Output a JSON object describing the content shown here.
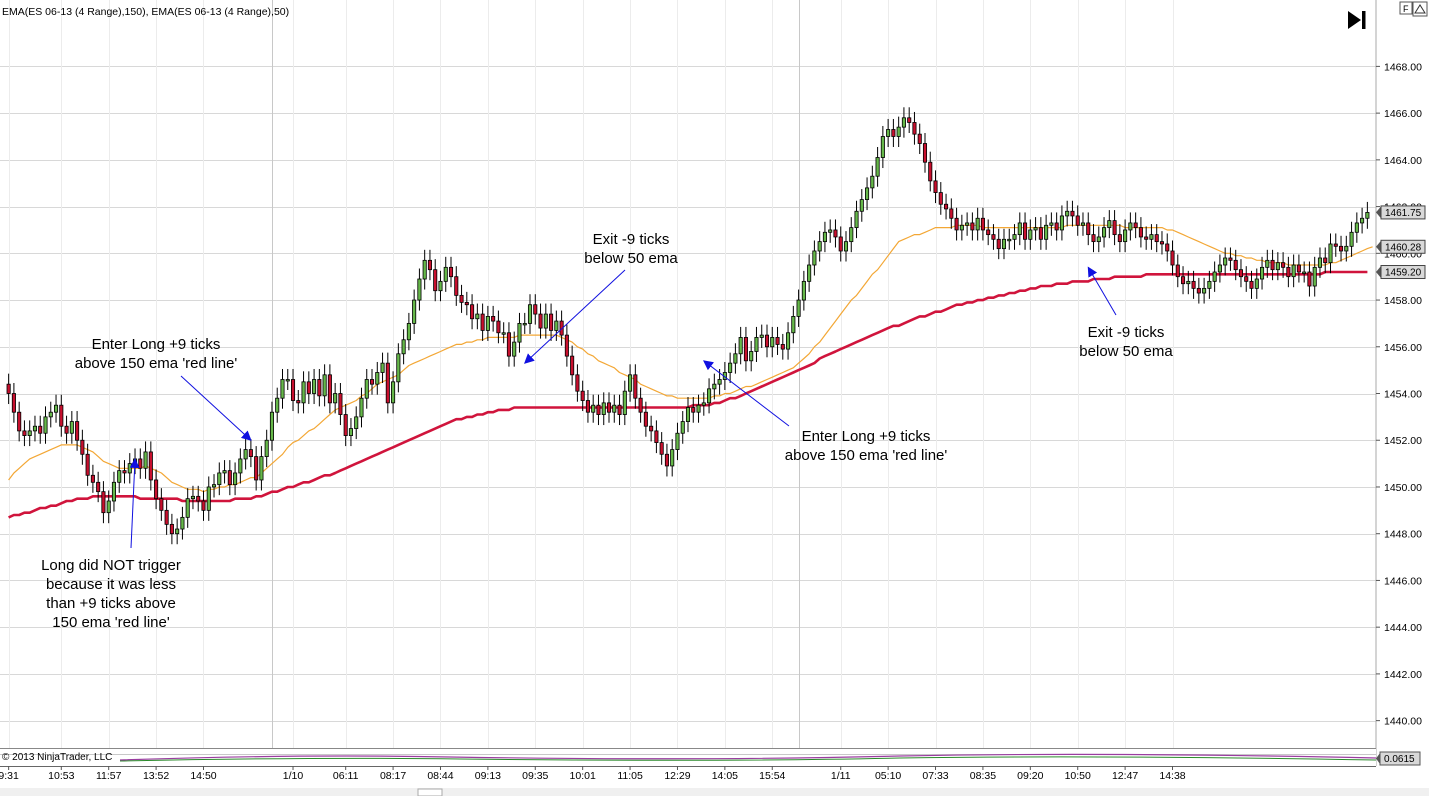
{
  "indicator_label": "EMA(ES 06-13 (4 Range),150), EMA(ES 06-13 (4 Range),50)",
  "copyright": "© 2013 NinjaTrader, LLC",
  "panel_value": "0.0615",
  "top_right_box": "F",
  "go_latest_icon": "skip-to-end-icon",
  "colors": {
    "ema150": "#d0143c",
    "ema50": "#f3a735",
    "up_candle": "#66b84a",
    "down_candle": "#c8102e",
    "arrow": "#1010e0",
    "grid": "#d8d8d8"
  },
  "chart_data": {
    "type": "candlestick",
    "ylim": [
      1439.0,
      1469.9
    ],
    "y_ticks": [
      "1468.00",
      "1466.00",
      "1464.00",
      "1462.00",
      "1460.00",
      "1458.00",
      "1456.00",
      "1454.00",
      "1452.00",
      "1450.00",
      "1448.00",
      "1446.00",
      "1444.00",
      "1442.00",
      "1440.00"
    ],
    "x_ticks": [
      "9:31",
      "10:53",
      "11:57",
      "13:52",
      "14:50",
      "1/10",
      "06:11",
      "08:17",
      "08:44",
      "09:13",
      "09:35",
      "10:01",
      "11:05",
      "12:29",
      "14:05",
      "15:54",
      "1/11",
      "05:10",
      "07:33",
      "08:35",
      "09:20",
      "10:50",
      "12:47",
      "14:38"
    ],
    "x_tick_bars": [
      0,
      10,
      19,
      28,
      37,
      54,
      64,
      73,
      82,
      91,
      100,
      109,
      118,
      127,
      136,
      145,
      158,
      167,
      176,
      185,
      194,
      203,
      212,
      221
    ],
    "price_badges": [
      {
        "label": "1461.75",
        "value": 1461.75,
        "series": "price"
      },
      {
        "label": "1460.28",
        "value": 1460.28,
        "series": "ema50"
      },
      {
        "label": "1459.20",
        "value": 1459.2,
        "series": "ema150"
      }
    ],
    "close": [
      1454.0,
      1453.2,
      1452.4,
      1452.2,
      1452.4,
      1452.6,
      1452.3,
      1453.0,
      1453.2,
      1453.5,
      1452.6,
      1452.3,
      1452.8,
      1452.0,
      1451.4,
      1450.5,
      1450.2,
      1449.8,
      1448.9,
      1449.4,
      1450.2,
      1450.7,
      1450.6,
      1451.0,
      1451.2,
      1450.8,
      1451.5,
      1450.3,
      1449.5,
      1449.0,
      1448.4,
      1448.0,
      1448.2,
      1448.7,
      1449.5,
      1449.6,
      1449.4,
      1449.0,
      1450.0,
      1450.1,
      1450.6,
      1450.7,
      1450.1,
      1450.6,
      1451.2,
      1451.6,
      1451.3,
      1450.3,
      1451.3,
      1452.0,
      1453.2,
      1453.8,
      1454.6,
      1454.6,
      1453.7,
      1453.6,
      1454.5,
      1454.0,
      1454.6,
      1453.9,
      1454.8,
      1453.6,
      1454.0,
      1453.1,
      1452.2,
      1452.5,
      1453.0,
      1453.8,
      1454.6,
      1454.4,
      1454.9,
      1455.3,
      1453.6,
      1454.5,
      1455.7,
      1456.3,
      1457.0,
      1458.0,
      1458.9,
      1459.7,
      1459.3,
      1458.4,
      1458.8,
      1459.4,
      1459.0,
      1458.2,
      1457.9,
      1457.8,
      1457.2,
      1457.4,
      1456.7,
      1457.3,
      1457.1,
      1456.6,
      1456.6,
      1455.6,
      1456.2,
      1457.0,
      1457.0,
      1457.8,
      1457.4,
      1456.8,
      1457.4,
      1456.7,
      1457.1,
      1456.5,
      1455.6,
      1454.8,
      1454.1,
      1453.7,
      1453.2,
      1453.5,
      1453.1,
      1453.6,
      1453.2,
      1453.5,
      1453.1,
      1454.1,
      1454.8,
      1453.8,
      1453.2,
      1452.6,
      1452.4,
      1451.9,
      1451.4,
      1450.9,
      1451.6,
      1452.3,
      1452.8,
      1453.4,
      1453.2,
      1453.5,
      1453.6,
      1454.2,
      1454.4,
      1454.6,
      1454.9,
      1455.3,
      1455.7,
      1456.4,
      1455.4,
      1455.8,
      1456.4,
      1456.5,
      1456.0,
      1456.4,
      1456.1,
      1455.9,
      1456.6,
      1457.3,
      1458.0,
      1458.8,
      1459.5,
      1460.1,
      1460.5,
      1460.9,
      1461.0,
      1460.7,
      1460.1,
      1460.5,
      1461.1,
      1461.8,
      1462.3,
      1462.8,
      1463.3,
      1464.1,
      1465.0,
      1465.3,
      1465.0,
      1465.4,
      1465.8,
      1465.6,
      1465.1,
      1464.7,
      1463.9,
      1463.1,
      1462.6,
      1462.1,
      1461.9,
      1461.5,
      1461.0,
      1461.2,
      1461.3,
      1461.0,
      1461.5,
      1461.0,
      1460.8,
      1460.6,
      1460.2,
      1460.6,
      1460.6,
      1460.8,
      1461.3,
      1460.6,
      1461.0,
      1461.1,
      1460.6,
      1461.2,
      1461.3,
      1461.0,
      1461.6,
      1461.8,
      1461.6,
      1461.2,
      1461.3,
      1460.8,
      1460.5,
      1460.7,
      1461.1,
      1461.4,
      1460.8,
      1460.5,
      1461.0,
      1461.3,
      1461.1,
      1460.7,
      1460.6,
      1460.8,
      1460.5,
      1460.4,
      1460.1,
      1459.5,
      1459.0,
      1458.7,
      1458.8,
      1458.5,
      1458.3,
      1458.5,
      1458.8,
      1459.2,
      1459.5,
      1459.8,
      1459.7,
      1459.3,
      1459.0,
      1458.8,
      1458.5,
      1458.9,
      1459.4,
      1459.7,
      1459.3,
      1459.6,
      1459.4,
      1459.0,
      1459.5,
      1459.2,
      1459.2,
      1458.6,
      1459.4,
      1459.8,
      1459.6,
      1460.4,
      1460.3,
      1460.1,
      1460.3,
      1460.9,
      1461.3,
      1461.5,
      1461.75
    ],
    "ema50": [
      1450.3,
      1450.6,
      1450.8,
      1451.0,
      1451.2,
      1451.3,
      1451.4,
      1451.5,
      1451.6,
      1451.7,
      1451.8,
      1451.8,
      1451.8,
      1451.8,
      1451.7,
      1451.6,
      1451.5,
      1451.3,
      1451.1,
      1451.0,
      1450.9,
      1450.8,
      1450.8,
      1450.8,
      1450.8,
      1450.8,
      1450.9,
      1450.8,
      1450.7,
      1450.6,
      1450.4,
      1450.2,
      1450.1,
      1450.0,
      1449.9,
      1449.9,
      1449.9,
      1449.8,
      1449.9,
      1449.9,
      1450.0,
      1450.0,
      1450.1,
      1450.1,
      1450.2,
      1450.3,
      1450.4,
      1450.4,
      1450.6,
      1450.8,
      1451.0,
      1451.2,
      1451.4,
      1451.7,
      1451.9,
      1452.0,
      1452.2,
      1452.4,
      1452.5,
      1452.7,
      1452.9,
      1453.1,
      1453.3,
      1453.4,
      1453.5,
      1453.6,
      1453.7,
      1453.9,
      1454.0,
      1454.2,
      1454.4,
      1454.5,
      1454.6,
      1454.7,
      1454.8,
      1455.0,
      1455.2,
      1455.3,
      1455.4,
      1455.5,
      1455.6,
      1455.7,
      1455.8,
      1455.9,
      1456.0,
      1456.1,
      1456.1,
      1456.2,
      1456.2,
      1456.3,
      1456.3,
      1456.4,
      1456.4,
      1456.4,
      1456.4,
      1456.4,
      1456.4,
      1456.5,
      1456.5,
      1456.5,
      1456.5,
      1456.5,
      1456.5,
      1456.5,
      1456.5,
      1456.4,
      1456.3,
      1456.2,
      1456.0,
      1455.9,
      1455.7,
      1455.6,
      1455.4,
      1455.3,
      1455.2,
      1455.1,
      1454.9,
      1454.8,
      1454.7,
      1454.6,
      1454.4,
      1454.3,
      1454.2,
      1454.1,
      1454.0,
      1453.9,
      1453.9,
      1453.8,
      1453.8,
      1453.8,
      1453.8,
      1453.8,
      1453.8,
      1453.8,
      1453.9,
      1453.9,
      1454.0,
      1454.0,
      1454.1,
      1454.2,
      1454.3,
      1454.3,
      1454.4,
      1454.5,
      1454.6,
      1454.7,
      1454.8,
      1454.9,
      1455.0,
      1455.1,
      1455.3,
      1455.5,
      1455.7,
      1456.0,
      1456.2,
      1456.5,
      1456.8,
      1457.1,
      1457.4,
      1457.7,
      1458.0,
      1458.2,
      1458.5,
      1458.8,
      1459.1,
      1459.3,
      1459.6,
      1459.9,
      1460.2,
      1460.5,
      1460.6,
      1460.7,
      1460.8,
      1460.8,
      1460.9,
      1461.0,
      1461.1,
      1461.1,
      1461.1,
      1461.1,
      1461.2,
      1461.2,
      1461.2,
      1461.2,
      1461.2,
      1461.1,
      1461.1,
      1461.1,
      1461.1,
      1461.1,
      1461.1,
      1461.1,
      1461.1,
      1461.1,
      1461.1,
      1461.1,
      1461.1,
      1461.1,
      1461.1,
      1461.1,
      1461.1,
      1461.2,
      1461.2,
      1461.2,
      1461.2,
      1461.2,
      1461.2,
      1461.2,
      1461.2,
      1461.2,
      1461.2,
      1461.2,
      1461.1,
      1461.1,
      1461.1,
      1461.1,
      1461.1,
      1461.1,
      1461.1,
      1461.1,
      1461.0,
      1461.0,
      1460.9,
      1460.8,
      1460.7,
      1460.6,
      1460.5,
      1460.4,
      1460.3,
      1460.2,
      1460.1,
      1460.0,
      1460.0,
      1459.9,
      1459.9,
      1459.8,
      1459.8,
      1459.7,
      1459.7,
      1459.6,
      1459.6,
      1459.6,
      1459.6,
      1459.5,
      1459.5,
      1459.5,
      1459.5,
      1459.5,
      1459.5,
      1459.5,
      1459.5,
      1459.6,
      1459.6,
      1459.7,
      1459.8,
      1459.9,
      1460.0,
      1460.1,
      1460.2,
      1460.28
    ],
    "ema150": [
      1448.7,
      1448.8,
      1448.8,
      1448.9,
      1448.9,
      1449.0,
      1449.1,
      1449.1,
      1449.2,
      1449.2,
      1449.3,
      1449.4,
      1449.4,
      1449.5,
      1449.5,
      1449.5,
      1449.6,
      1449.6,
      1449.6,
      1449.6,
      1449.6,
      1449.6,
      1449.6,
      1449.6,
      1449.6,
      1449.5,
      1449.5,
      1449.5,
      1449.5,
      1449.5,
      1449.5,
      1449.5,
      1449.5,
      1449.4,
      1449.4,
      1449.4,
      1449.4,
      1449.4,
      1449.4,
      1449.4,
      1449.4,
      1449.4,
      1449.4,
      1449.5,
      1449.5,
      1449.5,
      1449.5,
      1449.6,
      1449.6,
      1449.7,
      1449.8,
      1449.8,
      1449.9,
      1450.0,
      1450.0,
      1450.1,
      1450.2,
      1450.2,
      1450.3,
      1450.4,
      1450.5,
      1450.5,
      1450.6,
      1450.7,
      1450.8,
      1450.9,
      1451.0,
      1451.1,
      1451.2,
      1451.3,
      1451.4,
      1451.5,
      1451.6,
      1451.7,
      1451.8,
      1451.9,
      1452.0,
      1452.1,
      1452.2,
      1452.3,
      1452.4,
      1452.5,
      1452.6,
      1452.7,
      1452.8,
      1452.9,
      1452.9,
      1453.0,
      1453.0,
      1453.1,
      1453.1,
      1453.2,
      1453.2,
      1453.3,
      1453.3,
      1453.3,
      1453.4,
      1453.4,
      1453.4,
      1453.4,
      1453.4,
      1453.4,
      1453.4,
      1453.4,
      1453.4,
      1453.4,
      1453.4,
      1453.4,
      1453.4,
      1453.4,
      1453.4,
      1453.4,
      1453.4,
      1453.4,
      1453.4,
      1453.4,
      1453.4,
      1453.4,
      1453.4,
      1453.4,
      1453.4,
      1453.4,
      1453.4,
      1453.4,
      1453.4,
      1453.4,
      1453.4,
      1453.4,
      1453.4,
      1453.4,
      1453.5,
      1453.5,
      1453.5,
      1453.5,
      1453.6,
      1453.6,
      1453.7,
      1453.8,
      1453.8,
      1453.9,
      1454.0,
      1454.1,
      1454.2,
      1454.3,
      1454.4,
      1454.5,
      1454.6,
      1454.7,
      1454.8,
      1454.9,
      1455.0,
      1455.1,
      1455.2,
      1455.3,
      1455.5,
      1455.6,
      1455.7,
      1455.8,
      1455.9,
      1456.0,
      1456.1,
      1456.2,
      1456.3,
      1456.4,
      1456.5,
      1456.6,
      1456.7,
      1456.8,
      1456.9,
      1456.9,
      1457.0,
      1457.1,
      1457.2,
      1457.3,
      1457.3,
      1457.4,
      1457.5,
      1457.5,
      1457.6,
      1457.7,
      1457.8,
      1457.8,
      1457.9,
      1457.9,
      1458.0,
      1458.0,
      1458.1,
      1458.1,
      1458.2,
      1458.2,
      1458.3,
      1458.3,
      1458.4,
      1458.4,
      1458.5,
      1458.5,
      1458.6,
      1458.6,
      1458.6,
      1458.7,
      1458.7,
      1458.7,
      1458.8,
      1458.8,
      1458.8,
      1458.8,
      1458.9,
      1458.9,
      1458.9,
      1458.9,
      1459.0,
      1459.0,
      1459.0,
      1459.0,
      1459.0,
      1459.0,
      1459.1,
      1459.1,
      1459.1,
      1459.1,
      1459.1,
      1459.1,
      1459.1,
      1459.1,
      1459.1,
      1459.1,
      1459.1,
      1459.1,
      1459.1,
      1459.1,
      1459.1,
      1459.1,
      1459.1,
      1459.1,
      1459.1,
      1459.1,
      1459.1,
      1459.1,
      1459.1,
      1459.1,
      1459.1,
      1459.1,
      1459.1,
      1459.1,
      1459.1,
      1459.1,
      1459.1,
      1459.1,
      1459.1,
      1459.1,
      1459.2,
      1459.2,
      1459.2,
      1459.2,
      1459.2,
      1459.2,
      1459.2,
      1459.2,
      1459.2
    ],
    "annotations": [
      {
        "id": "long-not-triggered",
        "lines": [
          "Long did NOT trigger",
          "because it was less",
          "than +9 ticks above",
          "150 ema 'red line'"
        ],
        "target_bar": 24,
        "target_price": 1451.2
      },
      {
        "id": "enter-long-1",
        "lines": [
          "Enter Long +9 ticks",
          "above 150 ema 'red line'"
        ],
        "target_bar": 46,
        "target_price": 1452.0
      },
      {
        "id": "exit-1",
        "lines": [
          "Exit -9 ticks",
          "below 50 ema"
        ],
        "target_bar": 98,
        "target_price": 1455.3
      },
      {
        "id": "enter-long-2",
        "lines": [
          "Enter Long +9 ticks",
          "above 150 ema 'red line'"
        ],
        "target_bar": 132,
        "target_price": 1455.4
      },
      {
        "id": "exit-2",
        "lines": [
          "Exit -9 ticks",
          "below 50 ema"
        ],
        "target_bar": 205,
        "target_price": 1459.4
      }
    ]
  }
}
